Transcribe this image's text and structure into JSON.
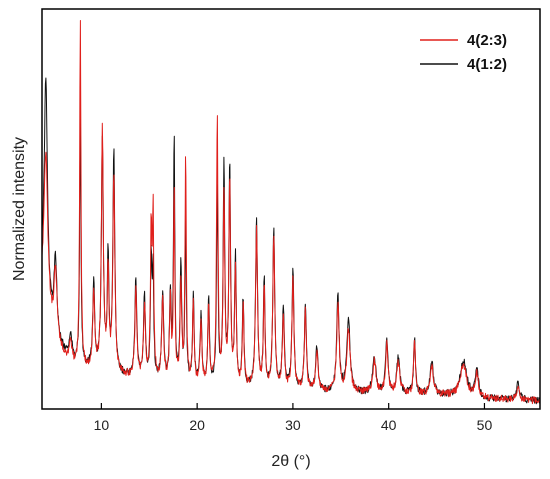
{
  "chart_data": {
    "type": "line",
    "title": "",
    "xlabel": "2θ (°)",
    "ylabel": "Normalized intensity",
    "xlim": [
      3.8,
      55.8
    ],
    "ylim": [
      0,
      1
    ],
    "x_ticks": [
      "10",
      "20",
      "30",
      "40",
      "50"
    ],
    "y_ticks": [],
    "grid": false,
    "legend_position": "top-right",
    "series": [
      {
        "name": "4(2:3)",
        "color": "#e0201c",
        "baseline": [
          [
            3.8,
            0.27
          ],
          [
            5,
            0.16
          ],
          [
            7,
            0.1
          ],
          [
            10,
            0.09
          ],
          [
            15,
            0.07
          ],
          [
            20,
            0.055
          ],
          [
            25,
            0.05
          ],
          [
            30,
            0.045
          ],
          [
            35,
            0.04
          ],
          [
            40,
            0.037
          ],
          [
            45,
            0.035
          ],
          [
            50,
            0.025
          ],
          [
            55.8,
            0.02
          ]
        ],
        "peaks": [
          [
            4.2,
            0.4,
            0.25
          ],
          [
            5.2,
            0.18,
            0.2
          ],
          [
            6.8,
            0.05,
            0.2
          ],
          [
            7.8,
            0.87,
            0.08
          ],
          [
            9.2,
            0.2,
            0.12
          ],
          [
            10.1,
            0.6,
            0.12
          ],
          [
            10.7,
            0.25,
            0.1
          ],
          [
            11.3,
            0.5,
            0.12
          ],
          [
            13.6,
            0.22,
            0.12
          ],
          [
            14.5,
            0.18,
            0.12
          ],
          [
            15.2,
            0.36,
            0.09
          ],
          [
            15.4,
            0.4,
            0.08
          ],
          [
            16.4,
            0.2,
            0.12
          ],
          [
            17.2,
            0.2,
            0.1
          ],
          [
            17.6,
            0.48,
            0.08
          ],
          [
            18.3,
            0.25,
            0.1
          ],
          [
            18.8,
            0.57,
            0.08
          ],
          [
            19.6,
            0.2,
            0.1
          ],
          [
            20.4,
            0.15,
            0.12
          ],
          [
            21.2,
            0.2,
            0.1
          ],
          [
            22.1,
            0.67,
            0.09
          ],
          [
            22.8,
            0.48,
            0.1
          ],
          [
            23.4,
            0.52,
            0.1
          ],
          [
            24.0,
            0.3,
            0.1
          ],
          [
            24.8,
            0.2,
            0.1
          ],
          [
            26.2,
            0.4,
            0.12
          ],
          [
            27.0,
            0.25,
            0.1
          ],
          [
            28.0,
            0.38,
            0.12
          ],
          [
            29.0,
            0.18,
            0.12
          ],
          [
            30.0,
            0.28,
            0.12
          ],
          [
            31.3,
            0.2,
            0.12
          ],
          [
            32.5,
            0.1,
            0.15
          ],
          [
            34.7,
            0.22,
            0.15
          ],
          [
            35.8,
            0.16,
            0.2
          ],
          [
            38.5,
            0.08,
            0.2
          ],
          [
            39.8,
            0.12,
            0.15
          ],
          [
            41.0,
            0.08,
            0.2
          ],
          [
            42.7,
            0.13,
            0.12
          ],
          [
            44.5,
            0.07,
            0.2
          ],
          [
            47.8,
            0.08,
            0.4
          ],
          [
            49.2,
            0.06,
            0.2
          ],
          [
            53.5,
            0.03,
            0.2
          ]
        ]
      },
      {
        "name": "4(1:2)",
        "color": "#111111",
        "baseline": [
          [
            3.8,
            0.32
          ],
          [
            5,
            0.17
          ],
          [
            7,
            0.11
          ],
          [
            10,
            0.09
          ],
          [
            15,
            0.07
          ],
          [
            20,
            0.055
          ],
          [
            25,
            0.05
          ],
          [
            30,
            0.045
          ],
          [
            35,
            0.04
          ],
          [
            40,
            0.037
          ],
          [
            45,
            0.035
          ],
          [
            50,
            0.025
          ],
          [
            55.8,
            0.02
          ]
        ],
        "peaks": [
          [
            4.2,
            0.55,
            0.2
          ],
          [
            5.2,
            0.2,
            0.2
          ],
          [
            6.8,
            0.06,
            0.2
          ],
          [
            7.8,
            0.62,
            0.08
          ],
          [
            9.2,
            0.22,
            0.12
          ],
          [
            10.1,
            0.58,
            0.12
          ],
          [
            10.7,
            0.28,
            0.1
          ],
          [
            11.3,
            0.55,
            0.12
          ],
          [
            13.6,
            0.25,
            0.12
          ],
          [
            14.5,
            0.2,
            0.12
          ],
          [
            15.2,
            0.3,
            0.09
          ],
          [
            15.4,
            0.26,
            0.08
          ],
          [
            16.4,
            0.22,
            0.12
          ],
          [
            17.2,
            0.22,
            0.1
          ],
          [
            17.6,
            0.62,
            0.08
          ],
          [
            18.3,
            0.3,
            0.1
          ],
          [
            18.8,
            0.42,
            0.08
          ],
          [
            19.6,
            0.22,
            0.1
          ],
          [
            20.4,
            0.17,
            0.12
          ],
          [
            21.2,
            0.22,
            0.1
          ],
          [
            22.1,
            0.5,
            0.09
          ],
          [
            22.8,
            0.55,
            0.1
          ],
          [
            23.4,
            0.55,
            0.1
          ],
          [
            24.0,
            0.32,
            0.1
          ],
          [
            24.8,
            0.22,
            0.1
          ],
          [
            26.2,
            0.42,
            0.12
          ],
          [
            27.0,
            0.27,
            0.1
          ],
          [
            28.0,
            0.4,
            0.12
          ],
          [
            29.0,
            0.2,
            0.12
          ],
          [
            30.0,
            0.3,
            0.12
          ],
          [
            31.3,
            0.22,
            0.12
          ],
          [
            32.5,
            0.11,
            0.15
          ],
          [
            34.7,
            0.24,
            0.15
          ],
          [
            35.8,
            0.18,
            0.2
          ],
          [
            38.5,
            0.09,
            0.2
          ],
          [
            39.8,
            0.13,
            0.15
          ],
          [
            41.0,
            0.09,
            0.2
          ],
          [
            42.7,
            0.14,
            0.12
          ],
          [
            44.5,
            0.08,
            0.2
          ],
          [
            47.8,
            0.09,
            0.4
          ],
          [
            49.2,
            0.07,
            0.2
          ],
          [
            53.5,
            0.04,
            0.2
          ]
        ]
      }
    ]
  }
}
